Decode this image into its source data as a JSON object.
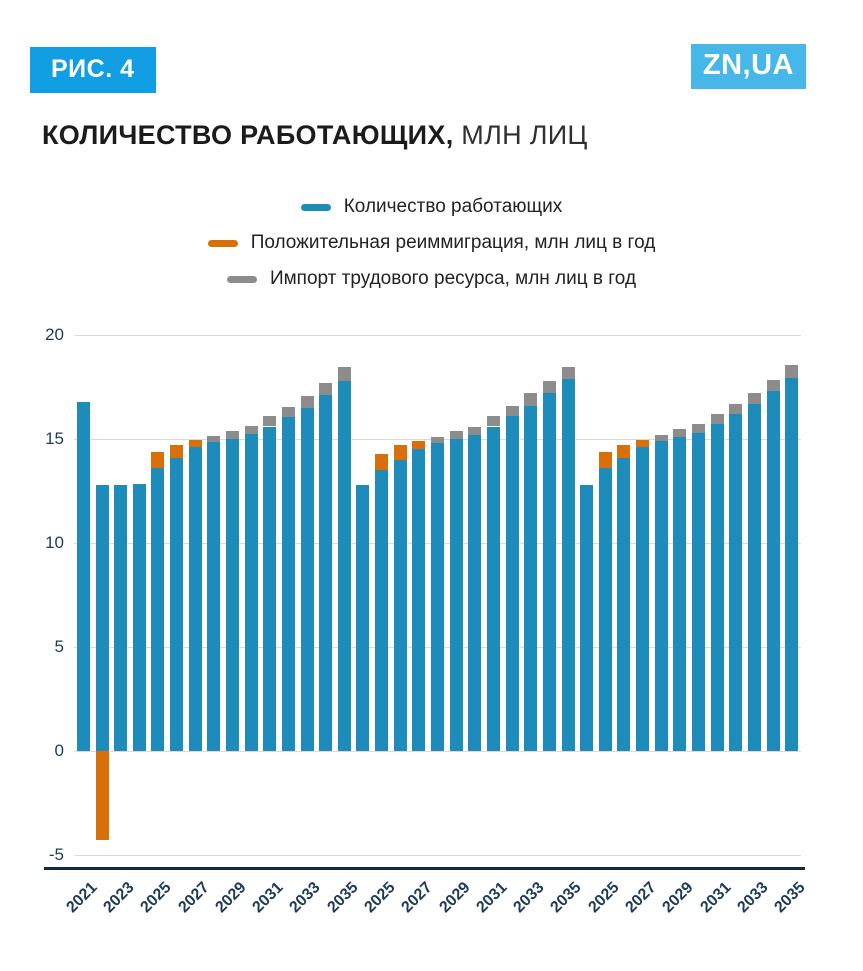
{
  "page": {
    "figure_badge": "РИС. 4",
    "logo": "ZN,UA",
    "title_bold": "КОЛИЧЕСТВО РАБОТАЮЩИХ,",
    "title_rest": " МЛН ЛИЦ"
  },
  "legend": {
    "items": [
      {
        "label": "Количество работающих",
        "color": "#1e8cba"
      },
      {
        "label": "Положительная реиммиграция, млн лиц в год",
        "color": "#d96f08"
      },
      {
        "label": "Импорт трудового ресурса, млн лиц в год",
        "color": "#8c8c8c"
      }
    ]
  },
  "chart_data": {
    "type": "bar",
    "stacked": true,
    "title": "КОЛИЧЕСТВО РАБОТАЮЩИХ, МЛН ЛИЦ",
    "ylabel": "млн лиц",
    "ylim": [
      -5,
      20
    ],
    "yticks": [
      -5,
      0,
      5,
      10,
      15,
      20
    ],
    "grid": true,
    "legend_position": "top-center",
    "colors": {
      "workers": "#1e8cba",
      "reimmigration": "#d96f08",
      "import_labor": "#8c8c8c"
    },
    "series": [
      {
        "name": "Количество работающих",
        "color": "#1e8cba"
      },
      {
        "name": "Положительная реиммиграция, млн лиц в год",
        "color": "#d96f08"
      },
      {
        "name": "Импорт трудового ресурса, млн лиц в год",
        "color": "#8c8c8c"
      }
    ],
    "bars": [
      {
        "year": 2021,
        "tick": "2021",
        "workers": 16.8,
        "reimmigration": 0,
        "import_labor": 0
      },
      {
        "year": 2022,
        "tick": null,
        "workers": 12.8,
        "reimmigration": -4.3,
        "import_labor": 0
      },
      {
        "year": 2023,
        "tick": "2023",
        "workers": 12.8,
        "reimmigration": 0,
        "import_labor": 0
      },
      {
        "year": 2024,
        "tick": null,
        "workers": 12.85,
        "reimmigration": 0,
        "import_labor": 0
      },
      {
        "year": 2025,
        "tick": "2025",
        "workers": 13.6,
        "reimmigration": 0.8,
        "import_labor": 0
      },
      {
        "year": 2026,
        "tick": null,
        "workers": 14.1,
        "reimmigration": 0.6,
        "import_labor": 0
      },
      {
        "year": 2027,
        "tick": "2027",
        "workers": 14.6,
        "reimmigration": 0.35,
        "import_labor": 0
      },
      {
        "year": 2028,
        "tick": null,
        "workers": 14.85,
        "reimmigration": 0,
        "import_labor": 0.3
      },
      {
        "year": 2029,
        "tick": "2029",
        "workers": 15.0,
        "reimmigration": 0,
        "import_labor": 0.4
      },
      {
        "year": 2030,
        "tick": null,
        "workers": 15.25,
        "reimmigration": 0,
        "import_labor": 0.4
      },
      {
        "year": 2031,
        "tick": "2031",
        "workers": 15.6,
        "reimmigration": 0,
        "import_labor": 0.5
      },
      {
        "year": 2032,
        "tick": null,
        "workers": 16.05,
        "reimmigration": 0,
        "import_labor": 0.5
      },
      {
        "year": 2033,
        "tick": "2033",
        "workers": 16.5,
        "reimmigration": 0,
        "import_labor": 0.55
      },
      {
        "year": 2034,
        "tick": null,
        "workers": 17.1,
        "reimmigration": 0,
        "import_labor": 0.6
      },
      {
        "year": 2035,
        "tick": "2035",
        "workers": 17.8,
        "reimmigration": 0,
        "import_labor": 0.65
      },
      {
        "year": 2024,
        "tick": null,
        "workers": 12.8,
        "reimmigration": 0,
        "import_labor": 0
      },
      {
        "year": 2025,
        "tick": "2025",
        "workers": 13.5,
        "reimmigration": 0.8,
        "import_labor": 0
      },
      {
        "year": 2026,
        "tick": null,
        "workers": 14.0,
        "reimmigration": 0.7,
        "import_labor": 0
      },
      {
        "year": 2027,
        "tick": "2027",
        "workers": 14.5,
        "reimmigration": 0.4,
        "import_labor": 0
      },
      {
        "year": 2028,
        "tick": null,
        "workers": 14.8,
        "reimmigration": 0,
        "import_labor": 0.3
      },
      {
        "year": 2029,
        "tick": "2029",
        "workers": 15.0,
        "reimmigration": 0,
        "import_labor": 0.4
      },
      {
        "year": 2030,
        "tick": null,
        "workers": 15.2,
        "reimmigration": 0,
        "import_labor": 0.4
      },
      {
        "year": 2031,
        "tick": "2031",
        "workers": 15.6,
        "reimmigration": 0,
        "import_labor": 0.5
      },
      {
        "year": 2032,
        "tick": null,
        "workers": 16.1,
        "reimmigration": 0,
        "import_labor": 0.5
      },
      {
        "year": 2033,
        "tick": "2033",
        "workers": 16.6,
        "reimmigration": 0,
        "import_labor": 0.6
      },
      {
        "year": 2034,
        "tick": null,
        "workers": 17.2,
        "reimmigration": 0,
        "import_labor": 0.6
      },
      {
        "year": 2035,
        "tick": "2035",
        "workers": 17.9,
        "reimmigration": 0,
        "import_labor": 0.55
      },
      {
        "year": 2024,
        "tick": null,
        "workers": 12.8,
        "reimmigration": 0,
        "import_labor": 0
      },
      {
        "year": 2025,
        "tick": "2025",
        "workers": 13.6,
        "reimmigration": 0.8,
        "import_labor": 0
      },
      {
        "year": 2026,
        "tick": null,
        "workers": 14.1,
        "reimmigration": 0.6,
        "import_labor": 0
      },
      {
        "year": 2027,
        "tick": "2027",
        "workers": 14.6,
        "reimmigration": 0.35,
        "import_labor": 0
      },
      {
        "year": 2028,
        "tick": null,
        "workers": 14.9,
        "reimmigration": 0,
        "import_labor": 0.3
      },
      {
        "year": 2029,
        "tick": "2029",
        "workers": 15.1,
        "reimmigration": 0,
        "import_labor": 0.4
      },
      {
        "year": 2030,
        "tick": null,
        "workers": 15.3,
        "reimmigration": 0,
        "import_labor": 0.4
      },
      {
        "year": 2031,
        "tick": "2031",
        "workers": 15.7,
        "reimmigration": 0,
        "import_labor": 0.5
      },
      {
        "year": 2032,
        "tick": null,
        "workers": 16.2,
        "reimmigration": 0,
        "import_labor": 0.5
      },
      {
        "year": 2033,
        "tick": "2033",
        "workers": 16.7,
        "reimmigration": 0,
        "import_labor": 0.5
      },
      {
        "year": 2034,
        "tick": null,
        "workers": 17.3,
        "reimmigration": 0,
        "import_labor": 0.55
      },
      {
        "year": 2035,
        "tick": "2035",
        "workers": 17.95,
        "reimmigration": 0,
        "import_labor": 0.6
      }
    ]
  }
}
